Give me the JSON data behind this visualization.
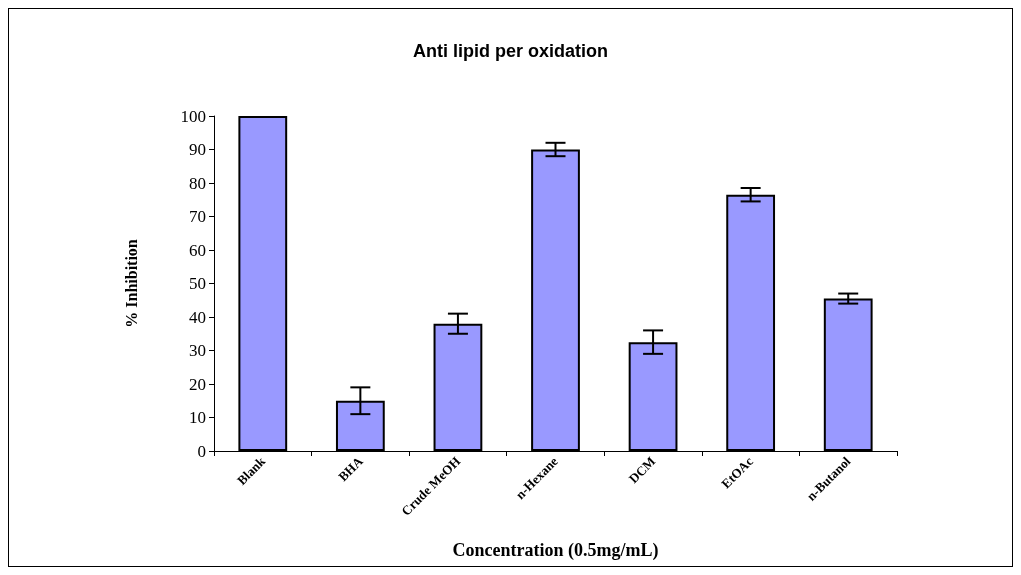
{
  "chart_data": {
    "type": "bar",
    "title": "Anti lipid per oxidation",
    "xlabel": "Concentration (0.5mg/mL)",
    "ylabel": "% Inhibition",
    "categories": [
      "Blank",
      "BHA",
      "Crude MeOH",
      "n-Hexane",
      "DCM",
      "EtOAc",
      "n-Butanol"
    ],
    "values": [
      100,
      15,
      38,
      90,
      32.5,
      76.5,
      45.5
    ],
    "errors": [
      null,
      4,
      3,
      2,
      3.5,
      2,
      1.5
    ],
    "color": "#9999ff",
    "ylim": [
      0,
      100
    ],
    "yticks": [
      0,
      10,
      20,
      30,
      40,
      50,
      60,
      70,
      80,
      90,
      100
    ],
    "grid": false
  }
}
